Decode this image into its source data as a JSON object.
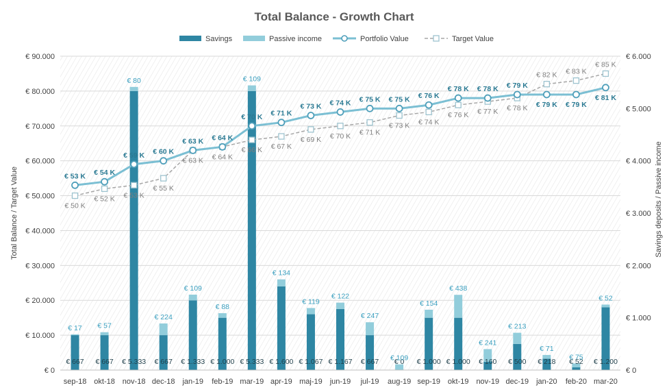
{
  "chart_data": {
    "type": "bar",
    "title": "Total Balance - Growth Chart",
    "ylabel_left": "Total Balance / Target Value",
    "ylabel_right": "Savings deposits / Passive income",
    "categories": [
      "sep-18",
      "okt-18",
      "nov-18",
      "dec-18",
      "jan-19",
      "feb-19",
      "mar-19",
      "apr-19",
      "maj-19",
      "jun-19",
      "jul-19",
      "aug-19",
      "sep-19",
      "okt-19",
      "nov-19",
      "dec-19",
      "jan-20",
      "feb-20",
      "mar-20"
    ],
    "left_axis": {
      "min": 0,
      "max": 90000,
      "ticks": [
        "€ 0",
        "€ 10.000",
        "€ 20.000",
        "€ 30.000",
        "€ 40.000",
        "€ 50.000",
        "€ 60.000",
        "€ 70.000",
        "€ 80.000",
        "€ 90.000"
      ]
    },
    "right_axis": {
      "min": 0,
      "max": 6000,
      "ticks": [
        "€ 0",
        "€ 1.000",
        "€ 2.000",
        "€ 3.000",
        "€ 4.000",
        "€ 5.000",
        "€ 6.000"
      ]
    },
    "series": [
      {
        "name": "Savings",
        "axis": "right",
        "kind": "stacked-bar",
        "color": "#2e86a3",
        "values": [
          667,
          667,
          5333,
          667,
          1333,
          1000,
          5333,
          1600,
          1067,
          1167,
          667,
          0,
          1000,
          1000,
          160,
          500,
          218,
          52,
          1200
        ],
        "labels": [
          "€ 667",
          "€ 667",
          "€ 5.333",
          "€ 667",
          "€ 1.333",
          "€ 1.000",
          "€ 5.333",
          "€ 1.600",
          "€ 1.067",
          "€ 1.167",
          "€ 667",
          "€ 0",
          "€ 1.000",
          "€ 1.000",
          "€ 160",
          "€ 500",
          "€ 218",
          "€ 52",
          "€ 1.200"
        ]
      },
      {
        "name": "Passive income",
        "axis": "right",
        "kind": "stacked-bar",
        "color": "#92cddb",
        "values": [
          17,
          57,
          80,
          224,
          109,
          88,
          109,
          134,
          119,
          122,
          247,
          109,
          154,
          438,
          241,
          213,
          71,
          75,
          52
        ],
        "labels": [
          "€ 17",
          "€ 57",
          "€ 80",
          "€ 224",
          "€ 109",
          "€ 88",
          "€ 109",
          "€ 134",
          "€ 119",
          "€ 122",
          "€ 247",
          "€ 109",
          "€ 154",
          "€ 438",
          "€ 241",
          "€ 213",
          "€ 71",
          "€ 75",
          "€ 52"
        ]
      },
      {
        "name": "Portfolio Value",
        "axis": "left",
        "kind": "line",
        "color": "#7bbfd3",
        "values": [
          53000,
          54000,
          59000,
          60000,
          63000,
          64000,
          70000,
          71000,
          73000,
          74000,
          75000,
          75000,
          76000,
          78000,
          78000,
          79000,
          79000,
          79000,
          81000
        ],
        "labels": [
          "€ 53 K",
          "€ 54 K",
          "€ 59 K",
          "€ 60 K",
          "€ 63 K",
          "€ 64 K",
          "€ 70 K",
          "€ 71 K",
          "€ 73 K",
          "€ 74 K",
          "€ 75 K",
          "€ 75 K",
          "€ 76 K",
          "€ 78 K",
          "€ 78 K",
          "€ 79 K",
          "€ 79 K",
          "€ 79 K",
          "€ 81 K"
        ]
      },
      {
        "name": "Target Value",
        "axis": "left",
        "kind": "dashed-line",
        "color": "#a6a6a6",
        "values": [
          50000,
          52000,
          53000,
          55000,
          63000,
          64000,
          66000,
          67000,
          69000,
          70000,
          71000,
          73000,
          74000,
          76000,
          77000,
          78000,
          82000,
          83000,
          85000
        ],
        "labels": [
          "€ 50 K",
          "€ 52 K",
          "€ 53 K",
          "€ 55 K",
          "€ 63 K",
          "€ 64 K",
          "€ 66 K",
          "€ 67 K",
          "€ 69 K",
          "€ 70 K",
          "€ 71 K",
          "€ 73 K",
          "€ 74 K",
          "€ 76 K",
          "€ 77 K",
          "€ 78 K",
          "€ 82 K",
          "€ 83 K",
          "€ 85 K"
        ]
      }
    ],
    "legend": "top-center",
    "grid": true
  }
}
